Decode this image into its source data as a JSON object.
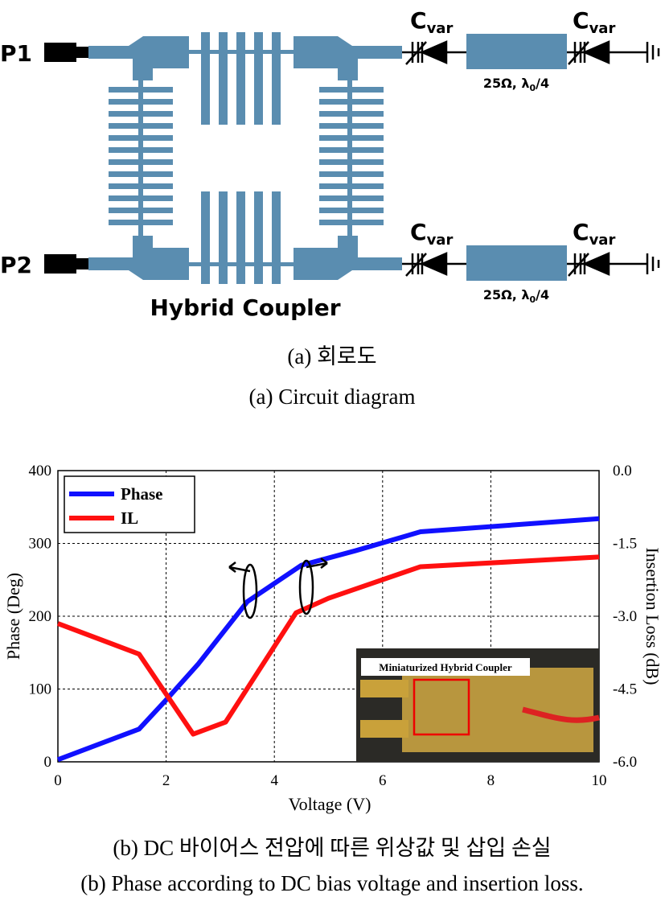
{
  "diagram": {
    "ports": [
      "P1",
      "P2"
    ],
    "coupler_label": "Hybrid Coupler",
    "capacitors": [
      {
        "label": "C",
        "sub": "var"
      },
      {
        "label": "C",
        "sub": "var"
      },
      {
        "label": "C",
        "sub": "var"
      },
      {
        "label": "C",
        "sub": "var"
      }
    ],
    "lines": [
      {
        "text": "25Ω, λ",
        "sub": "0",
        "tail": "/4"
      },
      {
        "text": "25Ω, λ",
        "sub": "0",
        "tail": "/4"
      }
    ]
  },
  "captions": [
    "(a) 회로도",
    "(a) Circuit diagram",
    "(b) DC 바이어스 전압에 따른 위상값 및 삽입 손실",
    "(b) Phase according to DC bias voltage and insertion loss."
  ],
  "chart_data": {
    "type": "line",
    "xlabel": "Voltage (V)",
    "ylabel": "Phase (Deg)",
    "y2label": "Insertion Loss (dB)",
    "annotations": [
      "Miniaturized Hybrid Coupler"
    ],
    "xlim": [
      0,
      10
    ],
    "xticks": [
      0,
      2,
      4,
      6,
      8,
      10
    ],
    "ylim": [
      0,
      400
    ],
    "yticks": [
      0,
      100,
      200,
      300,
      400
    ],
    "y2lim": [
      -6,
      0
    ],
    "y2ticks": [
      {
        "value": -6,
        "label": "-6.0"
      },
      -4.5,
      {
        "value": -3,
        "label": "-3.0"
      },
      -1.5,
      {
        "value": 0,
        "label": "0.0"
      }
    ],
    "grid": true,
    "legend": "upper left",
    "series": [
      {
        "name": "Phase",
        "color": "#1010ff",
        "x": [
          0,
          1.5,
          2,
          2.6,
          3.5,
          4.5,
          5.5,
          6.7,
          10
        ],
        "values": [
          3,
          45,
          85,
          135,
          220,
          270,
          290,
          316,
          334
        ]
      },
      {
        "name": "IL",
        "color": "#ff1010",
        "axis": "y2",
        "x": [
          0,
          1.5,
          2.5,
          3.1,
          4.4,
          5,
          6.7,
          10
        ],
        "values": [
          -3.15,
          -3.78,
          -5.43,
          -5.18,
          -2.93,
          -2.63,
          -1.98,
          -1.78
        ]
      }
    ]
  }
}
